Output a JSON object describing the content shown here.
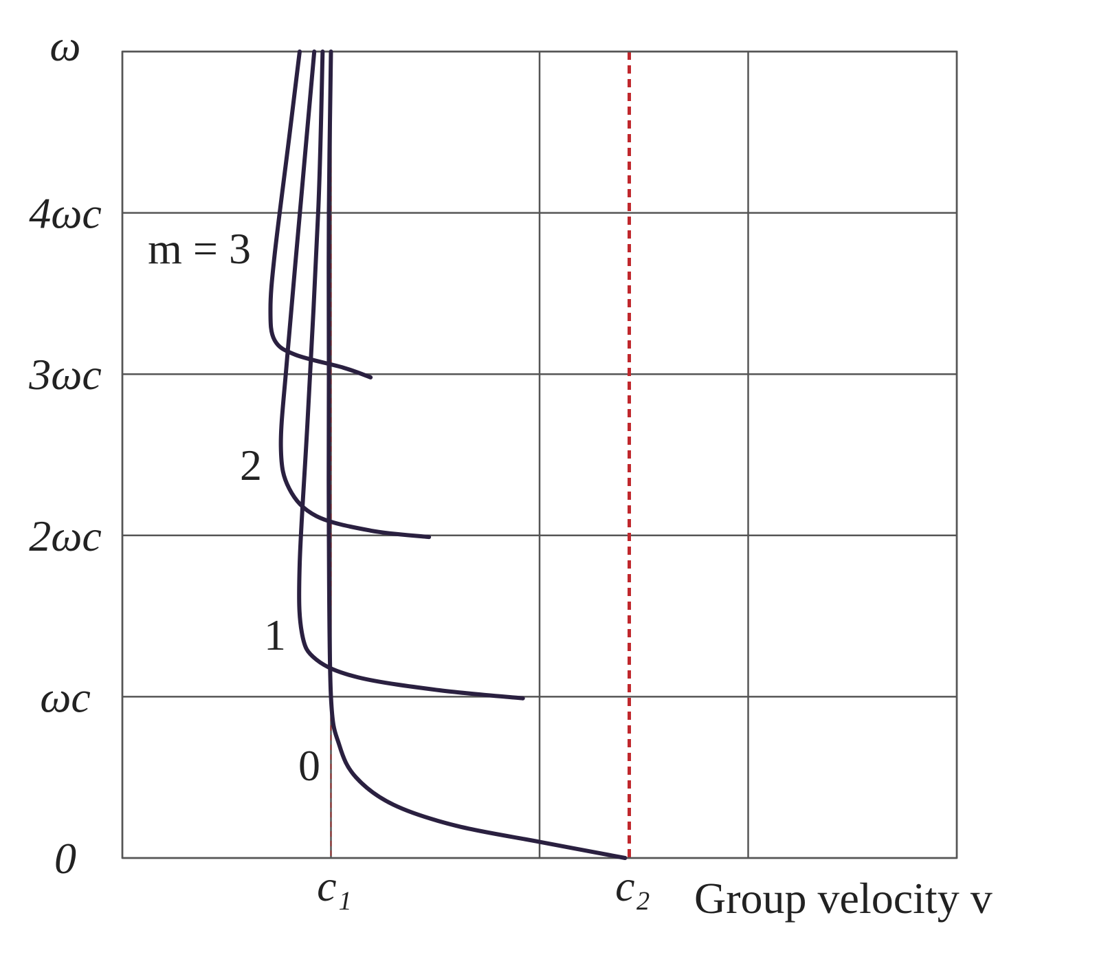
{
  "chart_data": {
    "type": "line",
    "y_label": "ω",
    "x_label": "Group velocity v",
    "xlim": [
      0,
      4
    ],
    "ylim": [
      0,
      5
    ],
    "xgrid": [
      0,
      1,
      2,
      3,
      4
    ],
    "xticks": [
      {
        "value": 1,
        "label": "c₁"
      },
      {
        "value": 2.43,
        "label": "c₂"
      }
    ],
    "yticks": [
      0,
      {
        "value": 1,
        "label": "ωc"
      },
      {
        "value": 2,
        "label": "2ωc"
      },
      {
        "value": 3,
        "label": "3ωc"
      },
      {
        "value": 4,
        "label": "4ωc"
      },
      5
    ],
    "grid": true,
    "reference_lines": [
      {
        "x": 1,
        "color": "#8b2a2a",
        "style": "dashed"
      },
      {
        "x": 2.43,
        "color": "#c0282d",
        "style": "dashed"
      }
    ],
    "series": [
      {
        "name": "0",
        "color": "#2a2040",
        "x": [
          2.41,
          2.0,
          1.6,
          1.3,
          1.12,
          1.04,
          1.0,
          0.99,
          0.99,
          0.99,
          1.0
        ],
        "values": [
          0,
          0.1,
          0.2,
          0.33,
          0.5,
          0.7,
          1.0,
          2,
          3,
          4,
          5
        ]
      },
      {
        "name": "1",
        "color": "#2a2040",
        "x": [
          1.92,
          1.52,
          1.13,
          0.93,
          0.86,
          0.85,
          0.89,
          0.94,
          0.96
        ],
        "values": [
          0.99,
          1.04,
          1.12,
          1.23,
          1.4,
          1.82,
          2.76,
          4.04,
          5
        ]
      },
      {
        "name": "2",
        "color": "#2a2040",
        "x": [
          1.47,
          1.19,
          0.93,
          0.8,
          0.76,
          0.79,
          0.86,
          0.92
        ],
        "values": [
          1.99,
          2.03,
          2.12,
          2.29,
          2.55,
          3.1,
          4.13,
          5
        ]
      },
      {
        "name": "m = 3",
        "color": "#2a2040",
        "x": [
          1.19,
          1.06,
          0.83,
          0.73,
          0.71,
          0.73,
          0.8,
          0.85
        ],
        "values": [
          2.98,
          3.04,
          3.12,
          3.21,
          3.4,
          3.74,
          4.47,
          5
        ]
      }
    ]
  }
}
